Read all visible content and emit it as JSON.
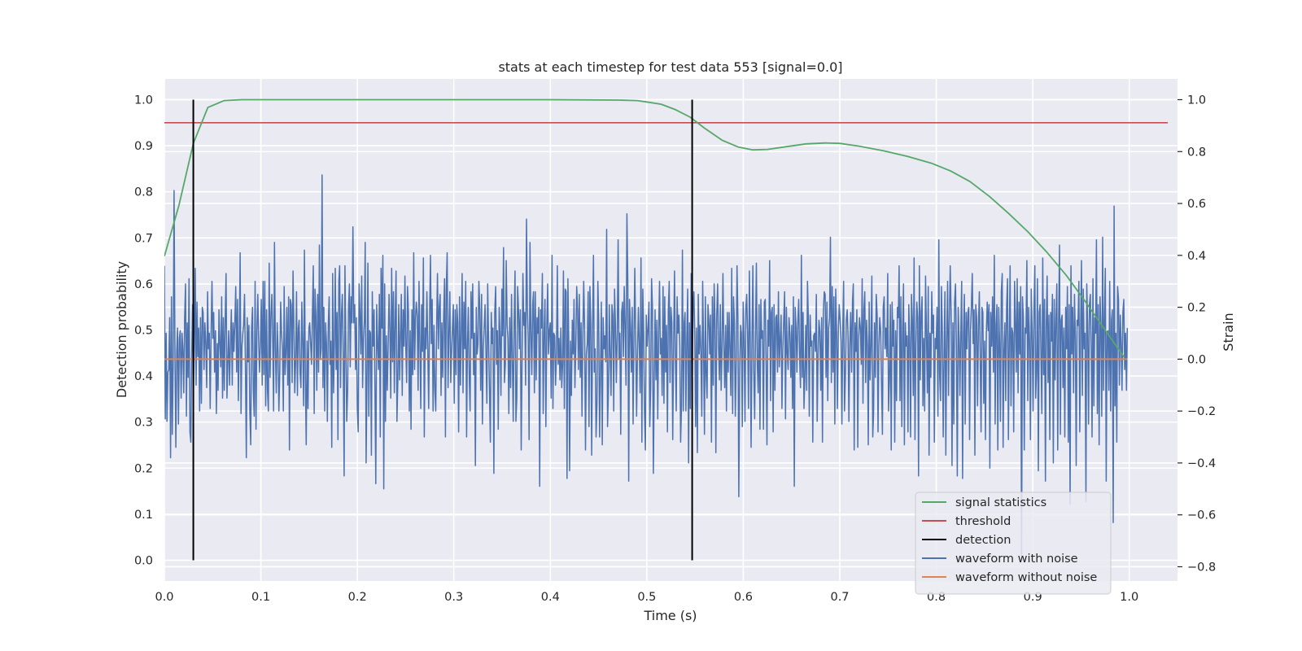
{
  "colors": {
    "background": "#EAEAF2",
    "grid": "#FFFFFF",
    "signal": "#55A868",
    "threshold": "#C44E52",
    "detection": "#000000",
    "noisy": "#4C72B0",
    "clean": "#DD8452"
  },
  "chart_data": {
    "type": "line",
    "title": "stats at each timestep for test data 553 [signal=0.0]",
    "xlabel": "Time (s)",
    "ylabel": "Detection probability",
    "y2label": "Strain",
    "xlim": [
      0.0,
      1.05
    ],
    "ylim": [
      -0.045,
      1.045
    ],
    "y2lim": [
      -0.855,
      1.08
    ],
    "xticks": [
      "0.0",
      "0.1",
      "0.2",
      "0.3",
      "0.4",
      "0.5",
      "0.6",
      "0.7",
      "0.8",
      "0.9",
      "1.0"
    ],
    "yticks": [
      "0.0",
      "0.1",
      "0.2",
      "0.3",
      "0.4",
      "0.5",
      "0.6",
      "0.7",
      "0.8",
      "0.9",
      "1.0"
    ],
    "y2ticks": [
      "−0.8",
      "−0.6",
      "−0.4",
      "−0.2",
      "0.0",
      "0.2",
      "0.4",
      "0.6",
      "0.8",
      "1.0"
    ],
    "grid": true,
    "legend_position": "bottom-right",
    "legend": [
      "signal statistics",
      "threshold",
      "detection",
      "waveform with noise",
      "waveform without noise"
    ],
    "signal_statistics": {
      "x": [
        0.0,
        0.015,
        0.03,
        0.045,
        0.062,
        0.08,
        0.1,
        0.2,
        0.3,
        0.4,
        0.47,
        0.49,
        0.5,
        0.515,
        0.53,
        0.545,
        0.56,
        0.578,
        0.595,
        0.61,
        0.625,
        0.645,
        0.665,
        0.685,
        0.7,
        0.72,
        0.745,
        0.77,
        0.795,
        0.815,
        0.835,
        0.855,
        0.875,
        0.895,
        0.915,
        0.935,
        0.955,
        0.97,
        0.985,
        0.995
      ],
      "y": [
        0.66,
        0.77,
        0.905,
        0.983,
        0.998,
        1.0,
        1.0,
        1.0,
        1.0,
        1.0,
        0.999,
        0.998,
        0.995,
        0.99,
        0.978,
        0.962,
        0.938,
        0.912,
        0.897,
        0.891,
        0.892,
        0.898,
        0.904,
        0.906,
        0.905,
        0.899,
        0.889,
        0.877,
        0.862,
        0.845,
        0.822,
        0.79,
        0.753,
        0.713,
        0.668,
        0.618,
        0.56,
        0.515,
        0.47,
        0.44
      ]
    },
    "threshold": {
      "value": 0.95,
      "x_range": [
        0.0,
        1.04
      ]
    },
    "detections": [
      {
        "x": 0.03,
        "y_range": [
          0.0,
          1.0
        ]
      },
      {
        "x": 0.547,
        "y_range": [
          0.0,
          1.0
        ]
      }
    ],
    "waveform_without_noise": {
      "axis": "right",
      "value": 0.0,
      "x_range": [
        0.0,
        0.998
      ]
    },
    "waveform_with_noise": {
      "axis": "right",
      "description_free": true,
      "x_start": 0.0,
      "x_end": 0.998,
      "samples": [
        0.36,
        -0.23,
        0.1,
        -0.24,
        -0.05,
        -0.04,
        0.16,
        -0.38,
        0.24,
        -0.29,
        -0.02,
        0.65,
        0.02,
        -0.34,
        0.03,
        0.12,
        -0.25,
        0.08,
        0.11,
        -0.15,
        0.1,
        0.04,
        -0.13,
        0.16,
        0.29,
        -0.22,
        0.14,
        -0.07,
        0.31,
        -0.28,
        -0.32,
        0.02,
        0.21,
        -0.12,
        0.05,
        0.35,
        -0.1,
        0.22,
        0.01,
        0.12,
        -0.2,
        0.16,
        -0.17,
        0.2,
        0.18,
        -0.04,
        0.14,
        0.06,
        -0.11,
        0.26,
        0.04,
        0.1,
        -0.19,
        0.1,
        0.3,
        0.08,
        0.18,
        -0.05,
        0.11,
        -0.21,
        0.06,
        -0.12,
        0.19,
        0.06,
        -0.03,
        0.24,
        -0.15,
        0.16,
        -0.12,
        0.15,
        0.33,
        -0.15,
        -0.01,
        0.11,
        -0.1,
        0.06,
        0.19,
        -0.1,
        0.14,
        0.03,
        0.14,
        0.28,
        -0.05,
        0.23,
        -0.16,
        0.05,
        0.41,
        -0.21,
        0.05,
        0.1,
        0.13,
        0.25,
        -0.02,
        -0.38,
        0.16,
        -0.01,
        0.13,
        -0.2,
        -0.33,
        0.12,
        0.2,
        -0.12,
        -0.22,
        0.3,
        -0.27,
        0.11,
        0.25,
        0.08,
        -0.05,
        0.05,
        0.23,
        -0.1,
        0.3,
        -0.06,
        0.3,
        -0.18,
        0.19,
        -0.12,
        -0.2,
        0.37,
        -0.07,
        0.17,
        0.25,
        0.07,
        -0.2,
        0.45,
        0.04,
        -0.13,
        0.14,
        0.03,
        -0.2,
        -0.05,
        0.22,
        0.1,
        0.04,
        -0.2,
        0.28,
        -0.06,
        0.02,
        0.2,
        -0.1,
        0.24,
        -0.35,
        0.23,
        0.21,
        -0.09,
        0.34,
        0.12,
        -0.13,
        -0.01,
        0.26,
        -0.14,
        0.12,
        0.15,
        -0.05,
        -0.11,
        0.22,
        0.06,
        -0.18,
        0.42,
        -0.06,
        -0.33,
        0.07,
        -0.19,
        0.12,
        0.14,
        0.06,
        -0.02,
        0.17,
        0.36,
        -0.21,
        0.27,
        0.17,
        -0.12,
        0.25,
        -0.05,
        0.44,
        0.0,
        0.04,
        0.71,
        -0.11,
        0.2,
        -0.2,
        0.14,
        0.06,
        -0.24,
        0.13,
        0.24,
        -0.02,
        0.07,
        -0.34,
        0.33,
        -0.13,
        0.07,
        0.35,
        -0.04,
        0.18,
        -0.31,
        0.3,
        0.36,
        -0.11,
        0.17,
        0.25,
        0.0,
        -0.45,
        0.36,
        0.06,
        -0.24,
        -0.12,
        0.2,
        0.29,
        -0.03,
        0.24,
        0.14,
        0.51,
        0.14,
        0.21,
        -0.04,
        0.16,
        -0.19,
        -0.28,
        0.29,
        0.18,
        0.02,
        0.32,
        -0.11,
        0.08,
        0.15,
        0.45,
        -0.4,
        -0.07,
        0.37,
        -0.22,
        0.11,
        0.1,
        -0.37,
        0.26,
        0.05,
        0.19,
        -0.12,
        -0.48,
        0.21,
        0.06,
        -0.04,
        0.25,
        -0.3,
        0.35,
        0.12,
        0.4,
        -0.5,
        0.29,
        -0.24,
        0.09,
        -0.12,
        0.05,
        0.25,
        0.1,
        -0.15,
        0.35,
        -0.01,
        0.26,
        -0.13,
        0.16,
        0.34,
        -0.24,
        -0.08,
        0.21,
        -0.08,
        0.1,
        0.25,
        -0.14,
        0.19,
        0.05,
        0.32,
        0.06,
        -0.09,
        0.28,
        0.18,
        -0.2,
        0.11,
        -0.27,
        0.19,
        -0.06,
        0.41,
        -0.04,
        0.16,
        0.22,
        0.17,
        -0.12,
        0.3,
        0.06,
        -0.19,
        0.21,
        0.03,
        0.39,
        -0.3,
        0.12,
        0.04,
        0.26,
        0.04,
        -0.19,
        0.16,
        0.4,
        0.06,
        0.23,
        -0.2,
        0.13,
        -0.12,
        -0.2,
        0.11,
        0.33,
        0.04,
        0.2,
        0.25,
        -0.14,
        0.14,
        -0.07,
        0.16,
        0.31,
        -0.3,
        0.27,
        0.41,
        -0.11,
        0.1,
        0.26,
        -0.09,
        0.02,
        0.12,
        0.21,
        -0.17,
        0.19,
        -0.06,
        0.21,
        0.14,
        -0.28,
        0.24,
        -0.1,
        0.11,
        0.33,
        -0.13,
        0.22,
        0.04,
        0.3,
        -0.3,
        0.05,
        0.2,
        -0.06,
        -0.2,
        0.26,
        0.08,
        0.29,
        -0.06,
        0.1,
        -0.41,
        0.2,
        0.02,
        0.06,
        0.3,
        0.19,
        -0.12,
        0.25,
        -0.25,
        0.04,
        0.12,
        0.21,
        0.02,
        -0.17,
        0.29,
        0.07,
        -0.12,
        -0.32,
        0.18,
        0.06,
        0.12,
        -0.44,
        0.18,
        0.28,
        -0.02,
        0.11,
        -0.27,
        0.2,
        0.09,
        -0.14,
        0.27,
        0.09,
        0.43,
        -0.09,
        -0.02,
        0.38,
        0.13,
        0.08,
        -0.21,
        0.16,
        -0.11,
        0.25,
        0.01,
        -0.24,
        0.14,
        0.34,
        -0.24,
        -0.15,
        0.28,
        0.19,
        0.04,
        0.19,
        -0.35,
        0.01,
        0.33,
        0.13,
        0.18,
        -0.1,
        0.54,
        0.19,
        0.08,
        -0.31,
        0.45,
        0.11,
        -0.06,
        0.21,
        0.26,
        -0.13,
        0.26,
        -0.08,
        0.16,
        0.1,
        0.2,
        -0.49,
        0.19,
        0.12,
        0.33,
        -0.21,
        0.1,
        0.23,
        -0.26,
        0.12,
        0.29,
        0.02,
        0.11,
        0.14,
        -0.15,
        0.4,
        -0.19,
        0.1,
        0.09,
        -0.1,
        0.02,
        0.36,
        -0.02,
        0.08,
        -0.08,
        0.12,
        -0.11,
        -0.02,
        0.34,
        -0.19,
        0.27,
        0.26,
        -0.46,
        0.31,
        0.06,
        -0.43,
        0.07,
        -0.14,
        0.15,
        0.02,
        0.23,
        -0.11,
        0.05,
        0.28,
        0.19,
        -0.04,
        0.25,
        -0.07,
        0.14,
        -0.22,
        0.1,
        0.3,
        0.12,
        -0.35,
        0.02,
        0.06,
        0.26,
        -0.26,
        0.28,
        0.14,
        -0.37,
        0.12,
        0.4,
        -0.05,
        0.04,
        -0.3,
        -0.17,
        0.3,
        0.15,
        -0.3,
        -0.06,
        0.22,
        -0.33,
        0.16,
        0.04,
        0.09,
        -0.01,
        0.5,
        -0.26,
        -0.12,
        0.21,
        0.02,
        -0.14,
        0.21,
        0.17,
        -0.2,
        0.27,
        0.13,
        -0.09,
        0.09,
        0.46,
        0.0,
        0.1,
        -0.29,
        0.18,
        0.22,
        0.01,
        0.28,
        0.13,
        -0.1,
        0.56,
        0.3,
        -0.47,
        0.23,
        0.13,
        -0.05,
        0.2,
        -0.25,
        0.1,
        0.35,
        0.08,
        -0.22,
        0.03,
        0.2,
        0.05,
        -0.13,
        0.39,
        -0.32,
        0.27,
        0.1,
        -0.2,
        -0.35,
        0.17,
        0.05,
        0.12,
        0.22,
        -0.26,
        -0.11,
        0.31,
        0.2,
        -0.44,
        -0.08,
        0.19,
        -0.08,
        0.15,
        -0.23,
        0.11,
        0.3,
        0.02,
        0.08,
        -0.14,
        0.28,
        -0.17,
        0.24,
        -0.05,
        0.13,
        -0.28,
        0.19,
        0.3,
        -0.09,
        0.2,
        0.14,
        -0.31,
        0.06,
        0.34,
        0.02,
        -0.2,
        0.24,
        0.1,
        0.17,
        0.05,
        -0.32,
        -0.18,
        0.42,
        -0.2,
        0.14,
        0.18,
        -0.2,
        0.08,
        0.27,
        -0.4,
        0.14,
        -0.19,
        0.33,
        -0.13,
        0.19,
        0.26,
        0.09,
        -0.26,
        0.12,
        -0.36,
        0.25,
        0.02,
        0.13,
        0.03,
        -0.22,
        0.3,
        0.04,
        -0.29,
        0.24,
        -0.06,
        -0.15,
        0.21,
        0.15,
        0.02,
        0.17,
        -0.32,
        0.24,
        -0.1,
        0.29,
        0.14,
        -0.36,
        0.17,
        0.29,
        0.05,
        -0.08,
        0.21,
        -0.12,
        0.04,
        0.33,
        0.06,
        -0.11,
        0.13,
        -0.2,
        0.18,
        -0.05,
        0.18,
        0.03,
        -0.14,
        0.35,
        -0.21,
        0.24,
        0.14,
        -0.22,
        -0.04,
        0.36,
        0.16,
        -0.53,
        -0.04,
        0.13,
        0.1,
        -0.26,
        0.22,
        0.07,
        -0.24,
        0.2,
        0.25,
        0.1,
        -0.19,
        0.34,
        0.07,
        -0.34,
        0.06,
        0.36,
        -0.05,
        -0.23,
        0.12,
        0.37,
        -0.02,
        -0.13,
        0.21,
        -0.27,
        0.23,
        0.08,
        0.11,
        -0.27,
        0.22,
        0.23,
        -0.03,
        -0.33,
        0.15,
        0.05,
        0.38,
        -0.16,
        0.18,
        0.2,
        -0.28,
        0.21,
        -0.12,
        0.16,
        0.17,
        -0.05,
        0.26,
        -0.03,
        0.08,
        0.17,
        -0.19,
        0.04,
        0.15,
        0.26,
        -0.23,
        0.2,
        0.03,
        -0.04,
        0.16,
        0.1,
        -0.07,
        0.13,
        -0.19,
        0.24,
        -0.49,
        0.2,
        0.12,
        -0.05,
        0.14,
        0.23,
        0.01,
        -0.11,
        0.4,
        -0.07,
        0.18,
        -0.19,
        -0.07,
        0.13,
        -0.12,
        0.3,
        0.15,
        -0.22,
        0.17,
        0.05,
        0.07,
        -0.32,
        0.09,
        0.1,
        0.03,
        0.25,
        -0.24,
        0.01,
        0.15,
        0.11,
        -0.12,
        0.16,
        -0.32,
        0.18,
        0.26,
        0.25,
        -0.07,
        0.22,
        -0.16,
        0.12,
        0.16,
        0.47,
        -0.09,
        0.28,
        -0.05,
        0.24,
        -0.25,
        0.27,
        0.1,
        -0.19,
        0.11,
        0.21,
        0.15,
        0.07,
        -0.25,
        0.1,
        0.3,
        -0.2,
        -0.06,
        0.15,
        0.19,
        0.1,
        -0.24,
        0.06,
        0.18,
        -0.05,
        0.22,
        0.29,
        -0.35,
        0.14,
        0.03,
        0.19,
        -0.34,
        0.08,
        0.16,
        0.12,
        -0.02,
        0.31,
        -0.17,
        0.19,
        0.26,
        -0.09,
        0.15,
        0.05,
        -0.33,
        0.22,
        -0.08,
        0.05,
        0.32,
        -0.3,
        -0.21,
        0.14,
        -0.07,
        0.25,
        0.17,
        -0.28,
        0.05,
        0.16,
        0.11,
        -0.09,
        -0.29,
        0.2,
        0.24,
        0.04,
        0.12,
        0.01,
        0.33,
        -0.2,
        -0.08,
        0.21,
        -0.35,
        0.22,
        0.05,
        0.15,
        -0.32,
        0.11,
        -0.16,
        0.2,
        0.16,
        0.36,
        -0.16,
        0.24,
        -0.26,
        0.12,
        0.29,
        -0.33,
        0.14,
        0.05,
        0.09,
        -0.28,
        0.21,
        0.08,
        -0.3,
        0.25,
        0.15,
        -0.14,
        0.39,
        -0.31,
        0.05,
        0.22,
        0.16,
        -0.45,
        0.36,
        -0.08,
        0.18,
        0.24,
        -0.18,
        0.08,
        -0.2,
        0.32,
        0.1,
        -0.13,
        0.28,
        -0.37,
        0.1,
        -0.07,
        0.26,
        0.1,
        0.17,
        -0.32,
        0.08,
        0.04,
        0.2,
        -0.22,
        0.46,
        -0.06,
        -0.16,
        0.28,
        0.1,
        -0.3,
        0.03,
        0.26,
        -0.37,
        0.08,
        0.3,
        -0.14,
        0.14,
        0.36,
        0.18,
        -0.41,
        0.14,
        -0.25,
        0.22,
        0.29,
        0.05,
        -0.45,
        0.2,
        0.08,
        -0.14,
        0.1,
        0.3,
        -0.46,
        0.1,
        0.25,
        -0.25,
        0.18,
        0.04,
        0.18,
        0.2,
        -0.31,
        0.11,
        0.2,
        0.33,
        0.06,
        0.19,
        -0.37,
        0.21,
        0.16,
        -0.18,
        0.13,
        0.26,
        0.02,
        -0.28,
        0.2,
        0.18,
        -0.17,
        0.07,
        -0.31,
        0.1,
        0.22,
        0.11,
        0.21,
        -0.42,
        0.18,
        0.05,
        0.24,
        -0.05,
        0.4,
        -0.25,
        0.13,
        0.21,
        -0.35,
        0.2,
        0.06,
        -0.24,
        0.26,
        0.33,
        -0.34,
        0.04,
        0.14,
        -0.16,
        0.2,
        0.31,
        -0.31,
        0.07,
        0.36,
        -0.18,
        0.12,
        0.1,
        -0.28,
        0.3,
        0.16,
        -0.05,
        0.31,
        -0.13,
        0.22,
        0.02,
        0.28,
        -0.77,
        0.24,
        0.16,
        -0.35,
        0.12,
        0.1,
        0.38,
        -0.16,
        0.2,
        0.07,
        -0.31,
        0.27,
        0.11,
        -0.2,
        0.19,
        0.36,
        -0.15,
        -0.05,
        0.31,
        -0.43,
        0.18,
        0.21,
        0.02,
        -0.21,
        0.39,
        -0.06,
        0.23,
        -0.47,
        0.12,
        0.32,
        -0.09,
        0.17,
        -0.31,
        0.18,
        0.07,
        0.25,
        -0.4,
        0.23,
        -0.08,
        0.15,
        0.29,
        -0.35,
        0.14,
        0.44,
        -0.29,
        0.15,
        0.17,
        -0.11,
        0.12,
        -0.3,
        0.2,
        0.04,
        0.28,
        -0.32,
        0.21,
        -0.56,
        0.36,
        0.02,
        0.2,
        -0.13,
        0.25,
        0.08,
        -0.41,
        0.15,
        0.13,
        0.3,
        -0.28,
        0.12,
        0.38,
        -0.14,
        0.27,
        0.04,
        0.1,
        -0.55,
        0.29,
        0.13,
        -0.25,
        0.21,
        0.25,
        0.04,
        -0.3,
        0.31,
        -0.18,
        0.16,
        0.1,
        0.46,
        -0.21,
        0.21,
        -0.33,
        0.24,
        0.11,
        -0.22,
        0.47,
        -0.12,
        0.16,
        0.35,
        -0.47,
        0.1,
        0.11,
        -0.12,
        0.3,
        -0.2,
        0.15,
        0.19,
        -0.63,
        0.59,
        -0.18,
        0.1,
        -0.32,
        0.28,
        0.23,
        -0.1,
        0.17,
        0.05,
        -0.12,
        0.18,
        0.23,
        -0.04,
        0.1,
        -0.12,
        0.12
      ]
    }
  }
}
